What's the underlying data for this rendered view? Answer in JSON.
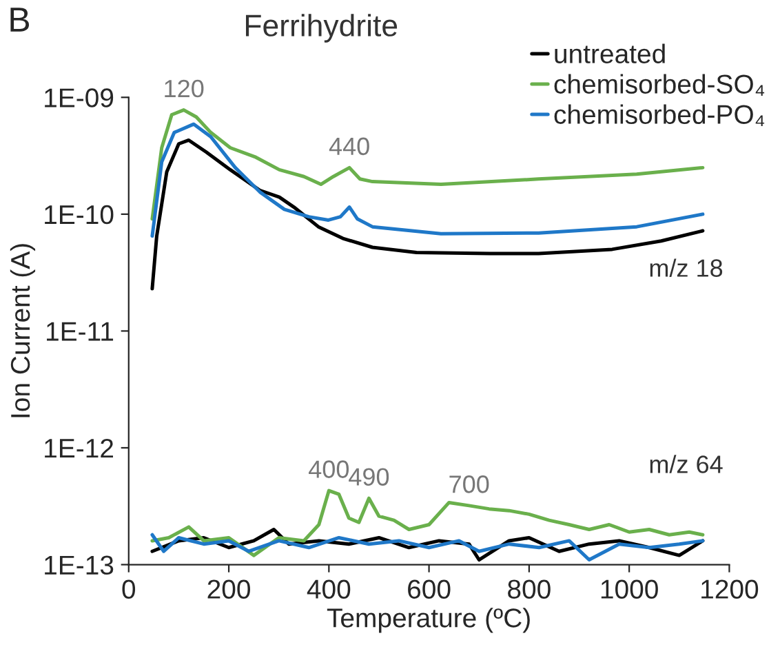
{
  "chart_data": {
    "type": "line",
    "title": "Ferrihydrite",
    "xlabel": "Temperature (ºC)",
    "ylabel": "Ion Current (A)",
    "log": "y",
    "xlim": [
      0,
      1200
    ],
    "xticks": [
      0,
      200,
      400,
      600,
      800,
      1000,
      1200
    ],
    "ylim": [
      1e-13,
      1e-09
    ],
    "yticks": [
      {
        "value": 1e-13,
        "label": "1E-13"
      },
      {
        "value": 1e-12,
        "label": "1E-12"
      },
      {
        "value": 1e-11,
        "label": "1E-11"
      },
      {
        "value": 1e-10,
        "label": "1E-10"
      },
      {
        "value": 1e-09,
        "label": "1E-09"
      }
    ],
    "grid": false,
    "legend": "top right",
    "line_style": "solid",
    "marker": "none",
    "series": [
      {
        "name": "untreated",
        "color": "#000000",
        "x": [
          47,
          56,
          76,
          100,
          120,
          155,
          203,
          262,
          301,
          330,
          379,
          428,
          487,
          575,
          722,
          819,
          966,
          1064,
          1147
        ],
        "values": [
          2.3e-11,
          6.5e-11,
          2.3e-10,
          4e-10,
          4.3e-10,
          3.4e-10,
          2.4e-10,
          1.6e-10,
          1.4e-10,
          1.15e-10,
          7.8e-11,
          6.2e-11,
          5.2e-11,
          4.7e-11,
          4.6e-11,
          4.6e-11,
          5e-11,
          5.9e-11,
          7.2e-11
        ]
      },
      {
        "name": "chemisorbed-SO₄",
        "color": "#6ab04c",
        "x": [
          47,
          66,
          86,
          110,
          135,
          164,
          203,
          252,
          301,
          350,
          384,
          409,
          441,
          462,
          487,
          624,
          819,
          1015,
          1147
        ],
        "values": [
          9.1e-11,
          3.7e-10,
          7.1e-10,
          7.8e-10,
          6.8e-10,
          5e-10,
          3.7e-10,
          3.1e-10,
          2.4e-10,
          2.1e-10,
          1.8e-10,
          2.1e-10,
          2.5e-10,
          2e-10,
          1.9e-10,
          1.8e-10,
          2e-10,
          2.2e-10,
          2.5e-10
        ]
      },
      {
        "name": "chemisorbed-PO₄",
        "color": "#1f78c8",
        "x": [
          47,
          66,
          91,
          130,
          164,
          213,
          262,
          311,
          360,
          399,
          423,
          441,
          457,
          487,
          624,
          819,
          1015,
          1147
        ],
        "values": [
          6.5e-11,
          2.8e-10,
          5e-10,
          5.9e-10,
          4.6e-10,
          2.5e-10,
          1.55e-10,
          1.1e-10,
          9.5e-11,
          8.9e-11,
          9.5e-11,
          1.15e-10,
          9.1e-11,
          7.8e-11,
          6.8e-11,
          6.9e-11,
          7.8e-11,
          1e-10
        ]
      },
      {
        "color": "#000000",
        "x": [
          47,
          100,
          150,
          200,
          250,
          290,
          320,
          380,
          440,
          500,
          560,
          620,
          680,
          700,
          760,
          800,
          860,
          920,
          980,
          1040,
          1100,
          1147
        ],
        "values": [
          1.3e-13,
          1.6e-13,
          1.7e-13,
          1.4e-13,
          1.6e-13,
          2e-13,
          1.5e-13,
          1.6e-13,
          1.5e-13,
          1.7e-13,
          1.4e-13,
          1.6e-13,
          1.5e-13,
          1.1e-13,
          1.6e-13,
          1.7e-13,
          1.3e-13,
          1.5e-13,
          1.6e-13,
          1.4e-13,
          1.2e-13,
          1.6e-13
        ]
      },
      {
        "color": "#6ab04c",
        "x": [
          47,
          80,
          120,
          150,
          200,
          250,
          300,
          350,
          380,
          400,
          420,
          440,
          460,
          480,
          500,
          530,
          560,
          600,
          640,
          680,
          720,
          760,
          800,
          840,
          880,
          920,
          960,
          1000,
          1040,
          1080,
          1120,
          1147
        ],
        "values": [
          1.6e-13,
          1.7e-13,
          2.1e-13,
          1.6e-13,
          1.7e-13,
          1.2e-13,
          1.7e-13,
          1.6e-13,
          2.2e-13,
          4.3e-13,
          4e-13,
          2.5e-13,
          2.3e-13,
          3.7e-13,
          2.6e-13,
          2.4e-13,
          2e-13,
          2.2e-13,
          3.4e-13,
          3.2e-13,
          3e-13,
          2.9e-13,
          2.7e-13,
          2.4e-13,
          2.2e-13,
          2e-13,
          2.2e-13,
          1.9e-13,
          2e-13,
          1.8e-13,
          1.9e-13,
          1.8e-13
        ]
      },
      {
        "color": "#1f78c8",
        "x": [
          47,
          70,
          100,
          150,
          200,
          240,
          300,
          360,
          420,
          480,
          540,
          600,
          660,
          700,
          760,
          820,
          880,
          920,
          980,
          1040,
          1100,
          1147
        ],
        "values": [
          1.8e-13,
          1.3e-13,
          1.7e-13,
          1.5e-13,
          1.6e-13,
          1.3e-13,
          1.6e-13,
          1.4e-13,
          1.7e-13,
          1.5e-13,
          1.6e-13,
          1.4e-13,
          1.6e-13,
          1.3e-13,
          1.5e-13,
          1.4e-13,
          1.6e-13,
          1.1e-13,
          1.5e-13,
          1.4e-13,
          1.5e-13,
          1.6e-13
        ]
      }
    ],
    "annotations": [
      "B",
      {
        "text": "120",
        "x": 110,
        "y": 7.8e-10
      },
      {
        "text": "440",
        "x": 441,
        "y": 2.5e-10
      },
      {
        "text": "400",
        "x": 400,
        "y": 4.3e-13
      },
      {
        "text": "490",
        "x": 480,
        "y": 3.7e-13
      },
      {
        "text": "700",
        "x": 680,
        "y": 3.2e-13
      },
      "m/z 18",
      "m/z 64"
    ]
  }
}
